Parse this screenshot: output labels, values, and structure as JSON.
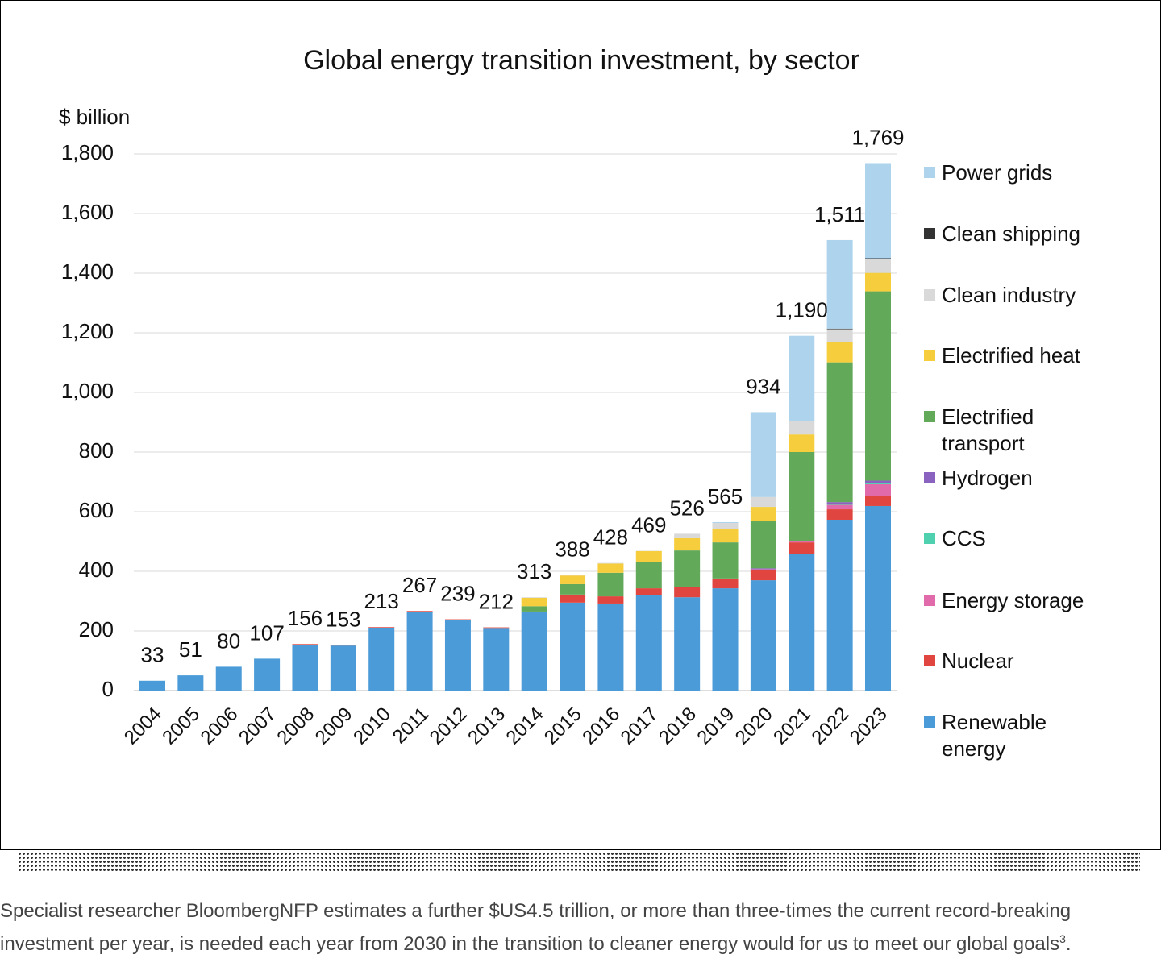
{
  "chart_data": {
    "type": "stacked-bar",
    "title": "Global energy transition investment, by sector",
    "y_axis_label": "$ billion",
    "categories": [
      "2004",
      "2005",
      "2006",
      "2007",
      "2008",
      "2009",
      "2010",
      "2011",
      "2012",
      "2013",
      "2014",
      "2015",
      "2016",
      "2017",
      "2018",
      "2019",
      "2020",
      "2021",
      "2022",
      "2023"
    ],
    "ylim": [
      0,
      1800
    ],
    "yticks": [
      0,
      200,
      400,
      600,
      800,
      {
        "value": 1000,
        "label": "1,000"
      },
      {
        "value": 1200,
        "label": "1,200"
      },
      {
        "value": 1400,
        "label": "1,400"
      },
      {
        "value": 1600,
        "label": "1,600"
      },
      {
        "value": 1800,
        "label": "1,800"
      }
    ],
    "grid": true,
    "legend": "right",
    "series": [
      {
        "name": "Renewable energy",
        "color": "#4a9bd8",
        "values": [
          33,
          51,
          80,
          107,
          154,
          151,
          211,
          265,
          237,
          210,
          265,
          295,
          292,
          319,
          313,
          343,
          370,
          459,
          573,
          619
        ]
      },
      {
        "name": "Nuclear",
        "color": "#e0463f",
        "values": [
          0,
          0,
          0,
          0,
          2,
          2,
          2,
          2,
          2,
          2,
          0,
          27,
          24,
          24,
          33,
          33,
          33,
          38,
          35,
          35
        ]
      },
      {
        "name": "Energy storage",
        "color": "#e06aaa",
        "values": [
          0,
          0,
          0,
          0,
          0,
          0,
          0,
          0,
          0,
          0,
          0,
          0,
          0,
          0,
          0,
          0,
          4,
          3,
          15,
          38
        ]
      },
      {
        "name": "CCS",
        "color": "#4fd1b0",
        "values": [
          0,
          0,
          0,
          0,
          0,
          0,
          0,
          0,
          0,
          0,
          0,
          0,
          0,
          0,
          0,
          0,
          0,
          0,
          3,
          4
        ]
      },
      {
        "name": "Hydrogen",
        "color": "#8a63c0",
        "values": [
          0,
          0,
          0,
          0,
          0,
          0,
          0,
          0,
          0,
          0,
          0,
          0,
          0,
          0,
          0,
          0,
          3,
          2,
          6,
          8
        ]
      },
      {
        "name": "Electrified transport",
        "color": "#63a95a",
        "values": [
          0,
          0,
          0,
          0,
          0,
          0,
          0,
          0,
          0,
          0,
          18,
          35,
          79,
          89,
          124,
          121,
          160,
          298,
          469,
          635
        ]
      },
      {
        "name": "Electrified heat",
        "color": "#f6cd3c",
        "values": [
          0,
          0,
          0,
          0,
          0,
          0,
          0,
          0,
          0,
          0,
          28,
          29,
          31,
          36,
          41,
          44,
          46,
          59,
          67,
          62
        ]
      },
      {
        "name": "Clean industry",
        "color": "#d9d9d9",
        "values": [
          0,
          0,
          0,
          0,
          0,
          0,
          0,
          0,
          0,
          0,
          2,
          2,
          2,
          1,
          15,
          21,
          33,
          44,
          44,
          46
        ]
      },
      {
        "name": "Clean shipping",
        "color": "#333333",
        "values": [
          0,
          0,
          0,
          0,
          0,
          0,
          0,
          0,
          0,
          0,
          0,
          0,
          0,
          0,
          0,
          0,
          0,
          0,
          2,
          3
        ]
      },
      {
        "name": "Power grids",
        "color": "#aed3ec",
        "values": [
          0,
          0,
          0,
          0,
          0,
          0,
          0,
          0,
          0,
          0,
          0,
          0,
          0,
          0,
          0,
          3,
          285,
          287,
          297,
          319
        ]
      }
    ],
    "totals": [
      33,
      51,
      80,
      107,
      156,
      153,
      213,
      267,
      239,
      212,
      313,
      388,
      428,
      469,
      526,
      565,
      934,
      1190,
      1511,
      1769
    ],
    "total_labels": [
      "33",
      "51",
      "80",
      "107",
      "156",
      "153",
      "213",
      "267",
      "239",
      "212",
      "313",
      "388",
      "428",
      "469",
      "526",
      "565",
      "934",
      "1,190",
      "1,511",
      "1,769"
    ]
  },
  "footer": {
    "text": "Specialist researcher BloombergNFP estimates a further $US4.5 trillion, or more than three-times the current record-breaking investment per year, is needed each year from 2030 in the transition to cleaner energy would for us to meet our global goals",
    "footnote_ref": "3",
    "end": "."
  }
}
